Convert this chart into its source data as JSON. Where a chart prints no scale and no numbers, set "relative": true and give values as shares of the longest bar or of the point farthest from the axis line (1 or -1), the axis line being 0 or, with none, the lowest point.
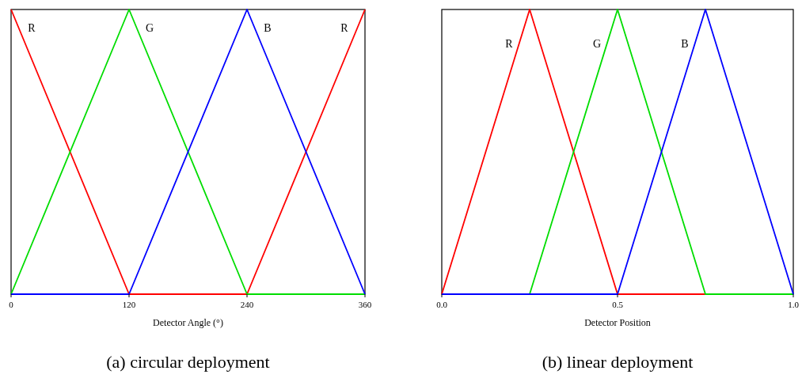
{
  "chart_data": [
    {
      "type": "line",
      "title": "(a) circular deployment",
      "xlabel": "Detector Angle (°)",
      "relative": true,
      "xlim": [
        0,
        360
      ],
      "xticks": [
        0,
        120,
        240,
        360
      ],
      "series": [
        {
          "name": "R",
          "color": "#ff0000",
          "x": [
            0,
            120,
            240,
            360
          ],
          "values": [
            1,
            0,
            0,
            1
          ]
        },
        {
          "name": "G",
          "color": "#00dd00",
          "x": [
            0,
            120,
            240,
            360
          ],
          "values": [
            0,
            1,
            0,
            0
          ]
        },
        {
          "name": "B",
          "color": "#0000ff",
          "x": [
            0,
            120,
            240,
            360
          ],
          "values": [
            0,
            0,
            1,
            0
          ]
        }
      ]
    },
    {
      "type": "line",
      "title": "(b) linear deployment",
      "xlabel": "Detector Position",
      "relative": true,
      "xlim": [
        0,
        1
      ],
      "xticks": [
        {
          "value": 0,
          "label": "0.0"
        },
        {
          "value": 0.5,
          "label": "0.5"
        },
        {
          "value": 1,
          "label": "1.0"
        }
      ],
      "series": [
        {
          "name": "R",
          "color": "#ff0000",
          "x": [
            0,
            0.25,
            0.5,
            1
          ],
          "values": [
            0,
            1,
            0,
            0
          ]
        },
        {
          "name": "G",
          "color": "#00dd00",
          "x": [
            0,
            0.25,
            0.5,
            0.75,
            1
          ],
          "values": [
            0,
            0,
            1,
            0,
            0
          ]
        },
        {
          "name": "B",
          "color": "#0000ff",
          "x": [
            0,
            0.5,
            0.75,
            1
          ],
          "values": [
            0,
            0,
            1,
            0
          ]
        }
      ]
    }
  ]
}
